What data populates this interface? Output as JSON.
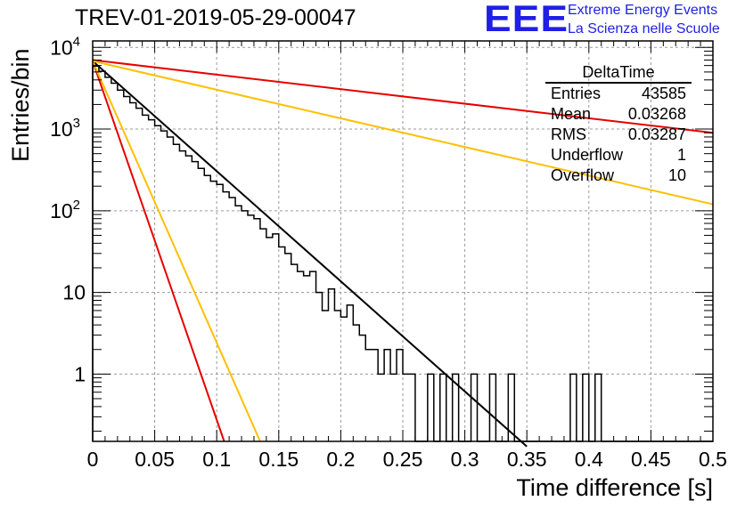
{
  "title": "TREV-01-2019-05-29-00047",
  "logo": {
    "mark": "EEE",
    "line1": "Extreme Energy Events",
    "line2": "La Scienza nelle Scuole",
    "color": "#1f1fe6"
  },
  "stats_box": {
    "header": "DeltaTime",
    "rows": [
      {
        "label": "Entries",
        "value": "43585"
      },
      {
        "label": "Mean",
        "value": "0.03268"
      },
      {
        "label": "RMS",
        "value": "0.03287"
      },
      {
        "label": "Underflow",
        "value": "1"
      },
      {
        "label": "Overflow",
        "value": "10"
      }
    ]
  },
  "chart_data": {
    "type": "histogram",
    "xlabel": "Time difference [s]",
    "ylabel": "Entries/bin",
    "xlim": [
      0,
      0.5
    ],
    "ylim": [
      0.15,
      12000
    ],
    "yscale": "log",
    "grid": true,
    "xticks": [
      "0",
      "0.05",
      "0.1",
      "0.15",
      "0.2",
      "0.25",
      "0.3",
      "0.35",
      "0.4",
      "0.45",
      "0.5"
    ],
    "yticks": [
      {
        "value": 1,
        "label": "1"
      },
      {
        "value": 10,
        "label": "10"
      },
      {
        "value": 100,
        "label": "10^2"
      },
      {
        "value": 1000,
        "label": "10^3"
      },
      {
        "value": 10000,
        "label": "10^4"
      }
    ],
    "bin_width": 0.005,
    "histogram": [
      5900,
      5100,
      4300,
      3650,
      3000,
      2500,
      2100,
      1800,
      1480,
      1300,
      1100,
      950,
      800,
      650,
      540,
      470,
      400,
      330,
      270,
      230,
      210,
      170,
      145,
      115,
      100,
      88,
      80,
      60,
      47,
      52,
      36,
      30,
      22,
      18,
      16,
      18,
      10,
      6,
      11,
      6,
      5,
      7,
      4,
      3,
      2,
      2,
      1,
      2,
      1,
      2,
      1,
      1,
      0,
      0,
      1,
      0,
      1,
      0,
      1,
      0,
      0,
      1,
      0,
      0,
      1,
      0,
      0,
      1,
      0,
      0,
      0,
      0,
      0,
      0,
      0,
      0,
      0,
      1,
      0,
      1,
      0,
      1,
      0,
      0,
      0,
      0,
      0,
      0,
      0,
      0,
      0,
      0,
      0,
      0,
      0,
      0,
      0,
      0,
      0,
      0
    ],
    "curves": [
      {
        "color": "#000000",
        "x": [
          0,
          0.35
        ],
        "y": [
          6800,
          0.13
        ]
      },
      {
        "color": "#e60000",
        "x": [
          0,
          0.5
        ],
        "y": [
          7000,
          900
        ]
      },
      {
        "color": "#ffbf00",
        "x": [
          0,
          0.5
        ],
        "y": [
          6800,
          120
        ]
      },
      {
        "color": "#e60000",
        "x": [
          0,
          0.106
        ],
        "y": [
          6800,
          0.15
        ]
      },
      {
        "color": "#ffbf00",
        "x": [
          0,
          0.135
        ],
        "y": [
          6800,
          0.15
        ]
      }
    ]
  }
}
